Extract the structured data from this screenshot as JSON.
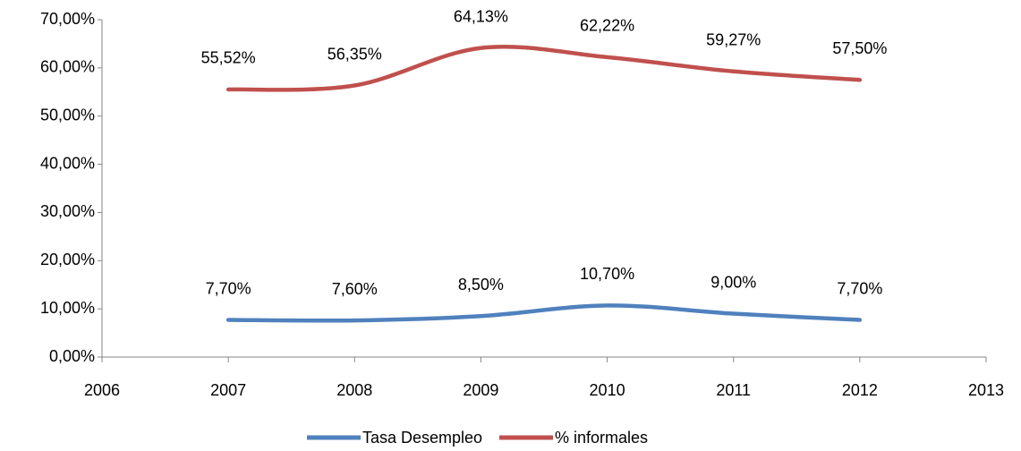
{
  "chart_data": {
    "type": "line",
    "x": [
      2007,
      2008,
      2009,
      2010,
      2011,
      2012
    ],
    "series": [
      {
        "name": "Tasa Desempleo",
        "color": "#4f81bd",
        "values": [
          7.7,
          7.6,
          8.5,
          10.7,
          9.0,
          7.7
        ],
        "value_labels": [
          "7,70%",
          "7,60%",
          "8,50%",
          "10,70%",
          "9,00%",
          "7,70%"
        ]
      },
      {
        "name": "% informales",
        "color": "#c0504d",
        "values": [
          55.52,
          56.35,
          64.13,
          62.22,
          59.27,
          57.5
        ],
        "value_labels": [
          "55,52%",
          "56,35%",
          "64,13%",
          "62,22%",
          "59,27%",
          "57,50%"
        ]
      }
    ],
    "xlim": [
      2006,
      2013
    ],
    "xticks": [
      2006,
      2007,
      2008,
      2009,
      2010,
      2011,
      2012,
      2013
    ],
    "ylim": [
      0,
      70
    ],
    "yticks": [
      {
        "value": 0,
        "label": "0,00%"
      },
      {
        "value": 10,
        "label": "10,00%"
      },
      {
        "value": 20,
        "label": "20,00%"
      },
      {
        "value": 30,
        "label": "30,00%"
      },
      {
        "value": 40,
        "label": "40,00%"
      },
      {
        "value": 50,
        "label": "50,00%"
      },
      {
        "value": 60,
        "label": "60,00%"
      },
      {
        "value": 70,
        "label": "70,00%"
      }
    ],
    "smooth": true,
    "legend": "bottom"
  }
}
